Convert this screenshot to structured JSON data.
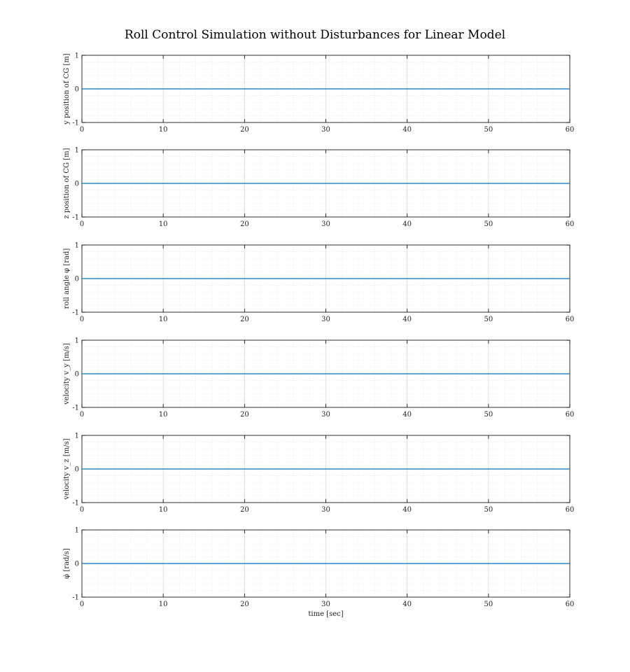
{
  "title": "Roll Control Simulation without Disturbances for Linear Model",
  "colors": {
    "line": "#0072BD",
    "axis": "#000000",
    "major_grid": "#d9d9d9",
    "minor_grid": "#e6e6e6"
  },
  "chart_data": [
    {
      "type": "line",
      "ylabel": "y position of CG [m]",
      "xlabel": "",
      "xlim": [
        0,
        60
      ],
      "ylim": [
        -1,
        1
      ],
      "xticks": [
        "0",
        "10",
        "20",
        "30",
        "40",
        "50",
        "60"
      ],
      "yticks": [
        "-1",
        "0",
        "1"
      ],
      "grid": "major and minor",
      "series": [
        {
          "x": [
            0,
            60
          ],
          "y": [
            0,
            0
          ]
        }
      ]
    },
    {
      "type": "line",
      "ylabel": "z position of CG [m]",
      "xlabel": "",
      "xlim": [
        0,
        60
      ],
      "ylim": [
        -1,
        1
      ],
      "xticks": [
        "0",
        "10",
        "20",
        "30",
        "40",
        "50",
        "60"
      ],
      "yticks": [
        "-1",
        "0",
        "1"
      ],
      "grid": "major and minor",
      "series": [
        {
          "x": [
            0,
            60
          ],
          "y": [
            0,
            0
          ]
        }
      ]
    },
    {
      "type": "line",
      "ylabel": "roll angle φ [rad]",
      "xlabel": "",
      "xlim": [
        0,
        60
      ],
      "ylim": [
        -1,
        1
      ],
      "xticks": [
        "0",
        "10",
        "20",
        "30",
        "40",
        "50",
        "60"
      ],
      "yticks": [
        "-1",
        "0",
        "1"
      ],
      "grid": "major and minor",
      "series": [
        {
          "x": [
            0,
            60
          ],
          "y": [
            0,
            0
          ]
        }
      ]
    },
    {
      "type": "line",
      "ylabel": "velocity v_y [m/s]",
      "xlabel": "",
      "xlim": [
        0,
        60
      ],
      "ylim": [
        -1,
        1
      ],
      "xticks": [
        "0",
        "10",
        "20",
        "30",
        "40",
        "50",
        "60"
      ],
      "yticks": [
        "-1",
        "0",
        "1"
      ],
      "grid": "major and minor",
      "series": [
        {
          "x": [
            0,
            60
          ],
          "y": [
            0,
            0
          ]
        }
      ]
    },
    {
      "type": "line",
      "ylabel": "velocity v_z [m/s]",
      "xlabel": "",
      "xlim": [
        0,
        60
      ],
      "ylim": [
        -1,
        1
      ],
      "xticks": [
        "0",
        "10",
        "20",
        "30",
        "40",
        "50",
        "60"
      ],
      "yticks": [
        "-1",
        "0",
        "1"
      ],
      "grid": "major and minor",
      "series": [
        {
          "x": [
            0,
            60
          ],
          "y": [
            0,
            0
          ]
        }
      ]
    },
    {
      "type": "line",
      "ylabel": "φ̇ [rad/s]",
      "xlabel": "time [sec]",
      "xlim": [
        0,
        60
      ],
      "ylim": [
        -1,
        1
      ],
      "xticks": [
        "0",
        "10",
        "20",
        "30",
        "40",
        "50",
        "60"
      ],
      "yticks": [
        "-1",
        "0",
        "1"
      ],
      "grid": "major and minor",
      "series": [
        {
          "x": [
            0,
            60
          ],
          "y": [
            0,
            0
          ]
        }
      ]
    }
  ]
}
